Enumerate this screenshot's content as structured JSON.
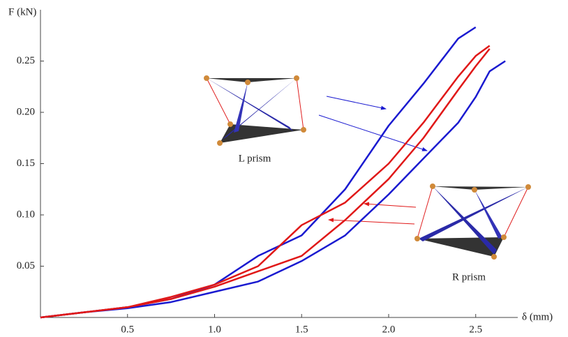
{
  "chart_data": {
    "type": "line",
    "y_label": "F (kN)",
    "x_label": "δ (mm)",
    "x": [
      0,
      0.25,
      0.5,
      0.75,
      1.0,
      1.25,
      1.5,
      1.75,
      2.0,
      2.2,
      2.4,
      2.5,
      2.58,
      2.67
    ],
    "series": [
      {
        "color": "#1a1ad0",
        "values": [
          0,
          0.005,
          0.01,
          0.018,
          0.032,
          0.06,
          0.08,
          0.125,
          0.187,
          0.228,
          0.272,
          0.283,
          null,
          null
        ]
      },
      {
        "color": "#1a1ad0",
        "values": [
          0,
          0.005,
          0.009,
          0.015,
          0.025,
          0.035,
          0.055,
          0.08,
          0.12,
          0.155,
          0.19,
          0.215,
          0.24,
          0.25
        ]
      },
      {
        "color": "#e01818",
        "values": [
          0,
          0.005,
          0.01,
          0.02,
          0.032,
          0.05,
          0.09,
          0.112,
          0.15,
          0.19,
          0.235,
          0.255,
          0.265,
          null
        ]
      },
      {
        "color": "#e01818",
        "values": [
          0,
          0.005,
          0.01,
          0.018,
          0.03,
          0.045,
          0.06,
          0.095,
          0.135,
          0.175,
          0.222,
          0.245,
          0.262,
          null
        ]
      }
    ],
    "xlim": [
      0,
      2.95
    ],
    "ylim": [
      0,
      0.3
    ],
    "xticks": [
      0.5,
      {
        "value": 1,
        "label": "1.0"
      },
      1.5,
      {
        "value": 2,
        "label": "2.0"
      },
      2.5
    ],
    "yticks": [
      0.05,
      {
        "value": 0.1,
        "label": "0.10"
      },
      0.15,
      {
        "value": 0.2,
        "label": "0.20"
      },
      0.25
    ],
    "annotations": [
      "L prism",
      "R prism"
    ]
  }
}
